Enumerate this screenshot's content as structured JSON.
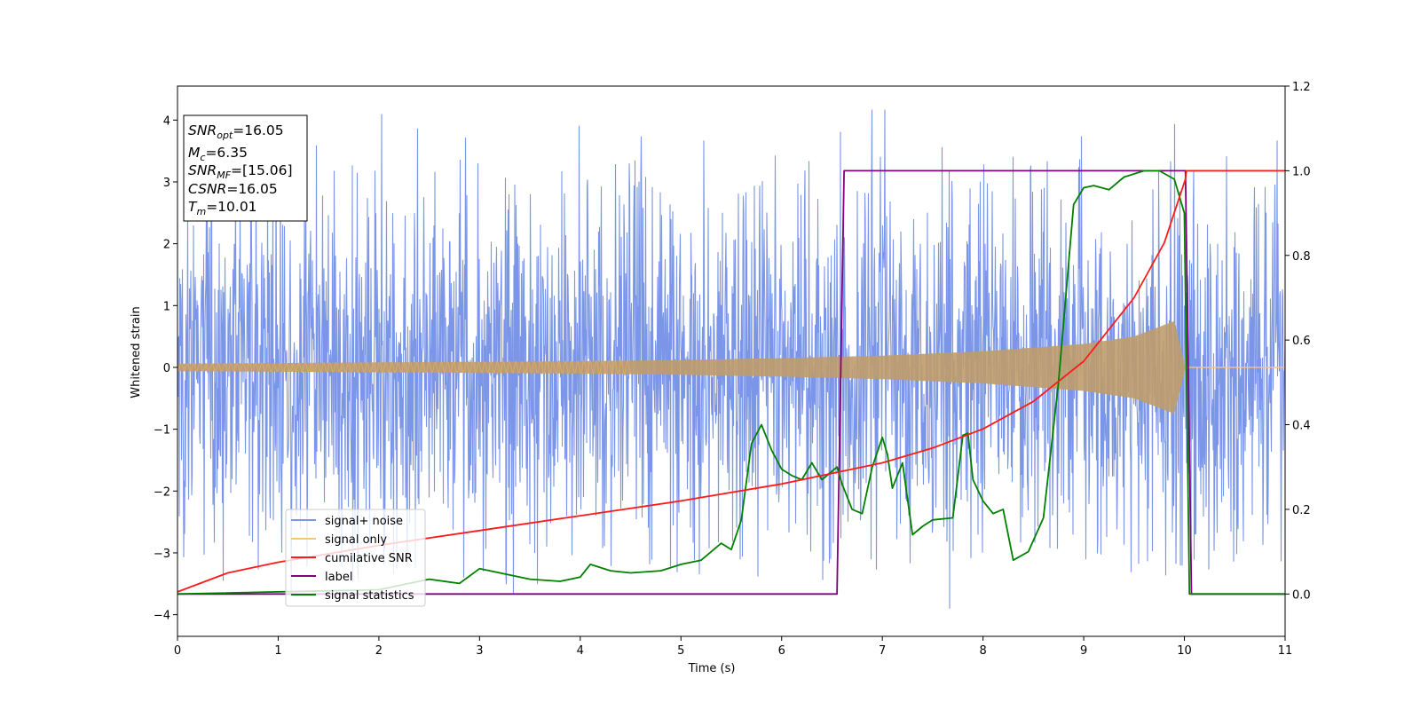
{
  "chart_data": {
    "type": "line",
    "xlabel": "Time (s)",
    "ylabel": "Whitened strain",
    "xlim": [
      0,
      11
    ],
    "ylim": [
      -4.35,
      4.55
    ],
    "y2lim": [
      -0.1,
      1.2
    ],
    "xticks": [
      "0",
      "1",
      "2",
      "3",
      "4",
      "5",
      "6",
      "7",
      "8",
      "9",
      "10",
      "11"
    ],
    "yticks": [
      "−4",
      "−3",
      "−2",
      "−1",
      "0",
      "1",
      "2",
      "3",
      "4"
    ],
    "y2ticks": [
      "0.0",
      "0.2",
      "0.4",
      "0.6",
      "0.8",
      "1.0",
      "1.2"
    ],
    "info_box": [
      {
        "sym": "SNR",
        "sub": "opt",
        "value": "=16.05"
      },
      {
        "sym": "M",
        "sub": "c",
        "value": "=6.35"
      },
      {
        "sym": "SNR",
        "sub": "MF",
        "value": "=[15.06]"
      },
      {
        "sym": "CSNR",
        "sub": "",
        "value": "=16.05"
      },
      {
        "sym": "T",
        "sub": "m",
        "value": "=10.01"
      }
    ],
    "legend": {
      "placement": "lower-left",
      "entries": [
        {
          "label": "signal+ noise",
          "color": "#7b96e8"
        },
        {
          "label": "signal only",
          "color": "#f5c878"
        },
        {
          "label": "cumilative SNR",
          "color": "#ff1a1a"
        },
        {
          "label": "label",
          "color": "#800080"
        },
        {
          "label": "signal statistics",
          "color": "#008000"
        }
      ]
    },
    "series": [
      {
        "name": "signal+ noise",
        "axis": "left",
        "color": "#7b96e8",
        "band": {
          "x": [
            0,
            11
          ],
          "core_amplitude": 1.3,
          "spike_max": 4.17,
          "spike_min": -3.9
        }
      },
      {
        "name": "signal only",
        "axis": "left",
        "color": "#f5c878",
        "envelope": {
          "x": [
            0,
            1,
            2,
            3,
            4,
            5,
            6,
            7,
            8,
            9,
            9.5,
            9.9,
            10.01,
            11
          ],
          "amplitude": [
            0.06,
            0.07,
            0.08,
            0.09,
            0.1,
            0.12,
            0.15,
            0.19,
            0.26,
            0.38,
            0.5,
            0.75,
            0.0,
            0.0
          ]
        }
      },
      {
        "name": "cumilative SNR",
        "axis": "right",
        "x": [
          0,
          0.5,
          1,
          2,
          3,
          4,
          5,
          6,
          6.6,
          7,
          7.5,
          8,
          8.5,
          9,
          9.5,
          9.8,
          10.01,
          10.02,
          11
        ],
        "y": [
          0.005,
          0.05,
          0.075,
          0.115,
          0.15,
          0.185,
          0.22,
          0.26,
          0.29,
          0.31,
          0.345,
          0.39,
          0.455,
          0.55,
          0.7,
          0.83,
          0.98,
          1.0,
          1.0
        ]
      },
      {
        "name": "label",
        "axis": "right",
        "x": [
          0,
          6.55,
          6.62,
          10.01,
          10.07,
          11
        ],
        "y": [
          0.0,
          0.0,
          1.0,
          1.0,
          0.0,
          0.0
        ]
      },
      {
        "name": "signal statistics",
        "axis": "right",
        "x": [
          0,
          2.0,
          2.2,
          2.5,
          2.8,
          3.0,
          3.2,
          3.5,
          3.8,
          4.0,
          4.1,
          4.3,
          4.5,
          4.8,
          5.0,
          5.2,
          5.4,
          5.5,
          5.6,
          5.7,
          5.8,
          5.9,
          6.0,
          6.1,
          6.2,
          6.3,
          6.4,
          6.5,
          6.55,
          6.6,
          6.7,
          6.8,
          6.9,
          7.0,
          7.05,
          7.1,
          7.2,
          7.3,
          7.4,
          7.5,
          7.7,
          7.8,
          7.85,
          7.9,
          8.0,
          8.1,
          8.2,
          8.3,
          8.45,
          8.6,
          8.75,
          8.9,
          9.0,
          9.1,
          9.25,
          9.4,
          9.6,
          9.75,
          9.9,
          10.0,
          10.05,
          10.2,
          11
        ],
        "y": [
          0.0,
          0.01,
          0.02,
          0.035,
          0.025,
          0.06,
          0.05,
          0.035,
          0.03,
          0.04,
          0.07,
          0.055,
          0.05,
          0.055,
          0.07,
          0.08,
          0.12,
          0.105,
          0.175,
          0.355,
          0.4,
          0.34,
          0.295,
          0.28,
          0.27,
          0.31,
          0.27,
          0.29,
          0.3,
          0.26,
          0.2,
          0.19,
          0.3,
          0.37,
          0.33,
          0.25,
          0.31,
          0.14,
          0.16,
          0.175,
          0.18,
          0.375,
          0.38,
          0.27,
          0.22,
          0.19,
          0.2,
          0.08,
          0.1,
          0.18,
          0.5,
          0.92,
          0.96,
          0.965,
          0.955,
          0.985,
          1.0,
          1.0,
          0.98,
          0.9,
          0.0,
          0.0,
          0.0
        ]
      }
    ]
  }
}
